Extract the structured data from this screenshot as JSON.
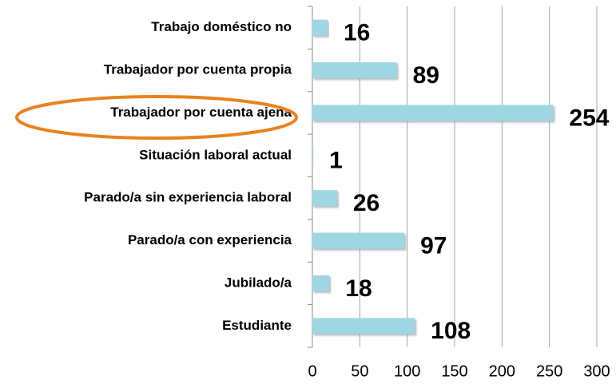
{
  "chart_data": {
    "type": "bar",
    "orientation": "horizontal",
    "categories": [
      "Trabajo doméstico no",
      "Trabajador por cuenta propia",
      "Trabajador por cuenta ajena",
      "Situación laboral actual",
      "Parado/a sin experiencia laboral",
      "Parado/a con experiencia",
      "Jubilado/a",
      "Estudiante"
    ],
    "values": [
      16,
      89,
      254,
      1,
      26,
      97,
      18,
      108
    ],
    "color": "#9fd6e3",
    "xlim": [
      0,
      300
    ],
    "xticks": [
      0,
      50,
      100,
      150,
      200,
      250,
      300
    ],
    "grid": true
  }
}
